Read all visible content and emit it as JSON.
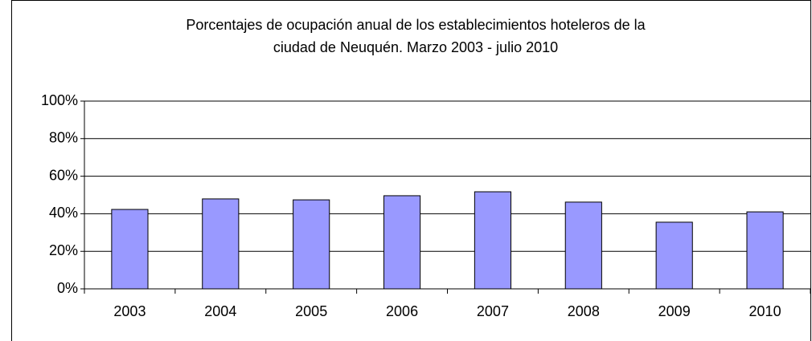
{
  "chart_data": {
    "type": "bar",
    "title": [
      "Porcentajes de ocupación anual de los establecimientos hoteleros de la",
      "ciudad de Neuquén. Marzo 2003 - julio 2010"
    ],
    "categories": [
      "2003",
      "2004",
      "2005",
      "2006",
      "2007",
      "2008",
      "2009",
      "2010"
    ],
    "values": [
      42.3,
      47.9,
      47.4,
      49.6,
      51.7,
      46.2,
      35.5,
      41
    ],
    "color": "#9999ff",
    "ylim": [
      0,
      100
    ],
    "yticks": [
      {
        "value": 0,
        "label": "0%"
      },
      {
        "value": 20,
        "label": "20%"
      },
      {
        "value": 40,
        "label": "40%"
      },
      {
        "value": 60,
        "label": "60%"
      },
      {
        "value": 80,
        "label": "80%"
      },
      {
        "value": 100,
        "label": "100%"
      }
    ],
    "grid": true
  }
}
